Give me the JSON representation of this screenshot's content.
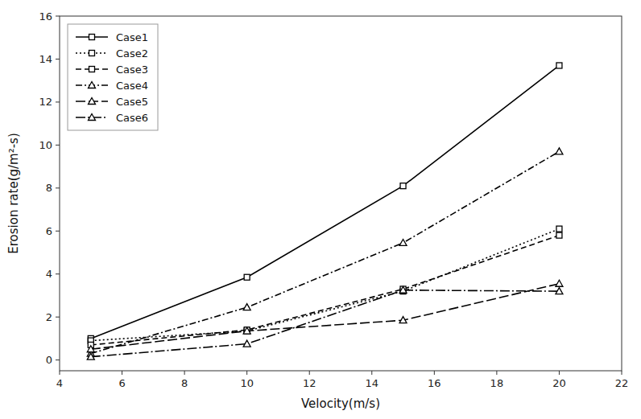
{
  "chart_data": {
    "type": "line",
    "xlabel": "Velocity(m/s)",
    "ylabel": "Erosion rate(g/m²-s)",
    "x": [
      5,
      10,
      15,
      20
    ],
    "xlim": [
      4,
      22
    ],
    "ylim": [
      -0.5,
      16
    ],
    "xticks": [
      4,
      6,
      8,
      10,
      12,
      14,
      16,
      18,
      20,
      22
    ],
    "yticks": [
      0,
      2,
      4,
      6,
      8,
      10,
      12,
      14,
      16
    ],
    "grid": false,
    "legend": "upper left",
    "series": [
      {
        "name": "Case1",
        "color": "#000000",
        "line_style": "solid",
        "marker": "square",
        "values": [
          1.0,
          3.85,
          8.1,
          13.7
        ]
      },
      {
        "name": "Case2",
        "color": "#000000",
        "line_style": "dotted",
        "marker": "square",
        "values": [
          0.9,
          1.35,
          3.2,
          6.1
        ]
      },
      {
        "name": "Case3",
        "color": "#000000",
        "line_style": "dashed",
        "marker": "square",
        "values": [
          0.7,
          1.4,
          3.3,
          5.8
        ]
      },
      {
        "name": "Case4",
        "color": "#000000",
        "line_style": "dashdot_fine",
        "marker": "triangle",
        "values": [
          0.3,
          2.45,
          5.45,
          9.7
        ]
      },
      {
        "name": "Case5",
        "color": "#000000",
        "line_style": "dashed_long",
        "marker": "triangle",
        "values": [
          0.5,
          1.35,
          1.85,
          3.55
        ]
      },
      {
        "name": "Case6",
        "color": "#000000",
        "line_style": "dashdot_coarse",
        "marker": "triangle",
        "values": [
          0.15,
          0.75,
          3.25,
          3.2
        ]
      }
    ]
  }
}
